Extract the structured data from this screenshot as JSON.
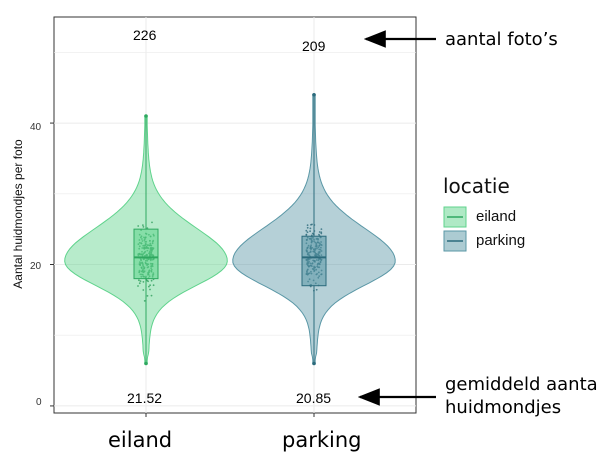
{
  "chart_data": {
    "type": "violin",
    "ylabel": "Aantal huidmondjes per foto",
    "ylim": [
      -1,
      55
    ],
    "yticks": [
      0,
      20,
      40
    ],
    "grid": true,
    "categories": [
      "eiland",
      "parking"
    ],
    "series": [
      {
        "name": "eiland",
        "color": "#5fd38c",
        "count": 226,
        "mean": 21.52,
        "min": 6,
        "q1": 18,
        "median": 21,
        "q3": 25,
        "max": 41
      },
      {
        "name": "parking",
        "color": "#5a97a6",
        "count": 209,
        "mean": 20.85,
        "min": 6,
        "q1": 17,
        "median": 21,
        "q3": 24,
        "max": 44
      }
    ],
    "count_labels": [
      "226",
      "209"
    ],
    "mean_labels": [
      "21.52",
      "20.85"
    ],
    "legend": {
      "title": "locatie",
      "entries": [
        "eiland",
        "parking"
      ],
      "position": "right"
    }
  },
  "annotations": {
    "count_note": "aantal foto’s",
    "mean_note_line1": "gemiddeld aantal",
    "mean_note_line2": "huidmondjes"
  }
}
